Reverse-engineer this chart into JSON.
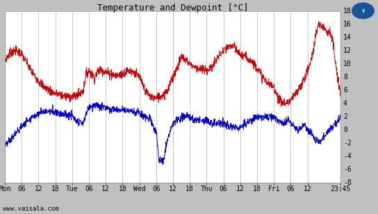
{
  "title": "Temperature and Dewpoint [°C]",
  "bg_color": "#c0c0c0",
  "plot_bg_color": "#ffffff",
  "grid_color": "#b0b0b0",
  "temp_color": "#cc0000",
  "dewp_color": "#0000cc",
  "ylim": [
    -8,
    18
  ],
  "yticks": [
    -8,
    -6,
    -4,
    -2,
    0,
    2,
    4,
    6,
    8,
    10,
    12,
    14,
    16,
    18
  ],
  "xtick_pos": [
    0,
    6,
    12,
    18,
    24,
    30,
    36,
    42,
    48,
    54,
    60,
    66,
    72,
    78,
    84,
    90,
    96,
    102,
    108,
    119.75
  ],
  "xtick_labels": [
    "Mon",
    "06",
    "12",
    "18",
    "Tue",
    "06",
    "12",
    "18",
    "Wed",
    "06",
    "12",
    "18",
    "Thu",
    "06",
    "12",
    "18",
    "Fri",
    "06",
    "12",
    "23:45"
  ],
  "watermark": "www.vaisala.com",
  "title_fontsize": 9,
  "axis_fontsize": 7,
  "line_width": 0.7,
  "xlim_max": 119.75,
  "temp_ctrl": [
    [
      0,
      10.5
    ],
    [
      2,
      11.8
    ],
    [
      4,
      12.0
    ],
    [
      6,
      11.5
    ],
    [
      8,
      10.0
    ],
    [
      10,
      8.5
    ],
    [
      12,
      7.5
    ],
    [
      14,
      6.5
    ],
    [
      16,
      6.0
    ],
    [
      18,
      5.5
    ],
    [
      20,
      5.3
    ],
    [
      22,
      5.1
    ],
    [
      24,
      5.0
    ],
    [
      26,
      5.2
    ],
    [
      28,
      6.0
    ],
    [
      29,
      8.5
    ],
    [
      30,
      9.0
    ],
    [
      31,
      8.5
    ],
    [
      32,
      8.0
    ],
    [
      33,
      8.8
    ],
    [
      34,
      9.2
    ],
    [
      35,
      9.0
    ],
    [
      36,
      8.8
    ],
    [
      38,
      8.5
    ],
    [
      40,
      8.2
    ],
    [
      42,
      8.5
    ],
    [
      44,
      9.0
    ],
    [
      46,
      8.8
    ],
    [
      48,
      8.0
    ],
    [
      50,
      6.0
    ],
    [
      52,
      5.0
    ],
    [
      54,
      4.8
    ],
    [
      56,
      5.2
    ],
    [
      58,
      6.0
    ],
    [
      60,
      8.0
    ],
    [
      62,
      10.0
    ],
    [
      63,
      11.0
    ],
    [
      64,
      10.8
    ],
    [
      65,
      10.5
    ],
    [
      66,
      10.0
    ],
    [
      68,
      9.5
    ],
    [
      70,
      9.2
    ],
    [
      72,
      9.0
    ],
    [
      74,
      9.5
    ],
    [
      76,
      11.0
    ],
    [
      78,
      12.0
    ],
    [
      80,
      12.5
    ],
    [
      81,
      12.8
    ],
    [
      82,
      12.5
    ],
    [
      83,
      11.8
    ],
    [
      84,
      11.5
    ],
    [
      86,
      11.0
    ],
    [
      88,
      10.5
    ],
    [
      90,
      9.5
    ],
    [
      92,
      8.0
    ],
    [
      94,
      7.0
    ],
    [
      96,
      6.5
    ],
    [
      97,
      5.5
    ],
    [
      98,
      4.5
    ],
    [
      99,
      4.2
    ],
    [
      100,
      4.0
    ],
    [
      101,
      4.2
    ],
    [
      102,
      4.5
    ],
    [
      103,
      5.0
    ],
    [
      104,
      5.5
    ],
    [
      106,
      7.0
    ],
    [
      108,
      9.0
    ],
    [
      109,
      10.0
    ],
    [
      110,
      12.0
    ],
    [
      111,
      14.5
    ],
    [
      112,
      16.0
    ],
    [
      113,
      15.8
    ],
    [
      114,
      15.5
    ],
    [
      115,
      15.0
    ],
    [
      116,
      14.8
    ],
    [
      117,
      13.5
    ],
    [
      118,
      10.0
    ],
    [
      119,
      7.0
    ],
    [
      119.75,
      5.5
    ]
  ],
  "dewp_ctrl": [
    [
      0,
      -2.5
    ],
    [
      2,
      -1.5
    ],
    [
      4,
      -0.5
    ],
    [
      6,
      0.5
    ],
    [
      8,
      1.5
    ],
    [
      10,
      2.0
    ],
    [
      12,
      2.5
    ],
    [
      14,
      2.8
    ],
    [
      16,
      2.8
    ],
    [
      18,
      2.8
    ],
    [
      20,
      2.5
    ],
    [
      22,
      2.3
    ],
    [
      24,
      2.2
    ],
    [
      25,
      1.5
    ],
    [
      26,
      1.0
    ],
    [
      27,
      1.2
    ],
    [
      28,
      1.0
    ],
    [
      29,
      2.5
    ],
    [
      30,
      3.5
    ],
    [
      32,
      3.8
    ],
    [
      34,
      3.5
    ],
    [
      36,
      3.5
    ],
    [
      38,
      3.2
    ],
    [
      40,
      3.0
    ],
    [
      42,
      3.2
    ],
    [
      44,
      3.0
    ],
    [
      46,
      2.8
    ],
    [
      48,
      2.5
    ],
    [
      50,
      2.0
    ],
    [
      52,
      1.5
    ],
    [
      53,
      0.5
    ],
    [
      54,
      -0.5
    ],
    [
      55,
      -4.5
    ],
    [
      56,
      -4.8
    ],
    [
      57,
      -4.0
    ],
    [
      58,
      -1.5
    ],
    [
      59,
      0.0
    ],
    [
      60,
      1.0
    ],
    [
      62,
      1.5
    ],
    [
      64,
      2.0
    ],
    [
      66,
      2.0
    ],
    [
      68,
      1.5
    ],
    [
      70,
      1.5
    ],
    [
      72,
      1.5
    ],
    [
      74,
      1.0
    ],
    [
      76,
      1.0
    ],
    [
      78,
      1.0
    ],
    [
      80,
      0.5
    ],
    [
      82,
      0.5
    ],
    [
      84,
      0.5
    ],
    [
      86,
      1.0
    ],
    [
      88,
      1.5
    ],
    [
      90,
      2.0
    ],
    [
      92,
      2.0
    ],
    [
      94,
      2.0
    ],
    [
      96,
      1.8
    ],
    [
      97,
      1.5
    ],
    [
      98,
      1.2
    ],
    [
      99,
      1.0
    ],
    [
      100,
      1.0
    ],
    [
      101,
      1.5
    ],
    [
      102,
      1.0
    ],
    [
      103,
      0.5
    ],
    [
      104,
      0.2
    ],
    [
      105,
      0.0
    ],
    [
      106,
      0.5
    ],
    [
      107,
      1.0
    ],
    [
      108,
      0.0
    ],
    [
      109,
      -0.5
    ],
    [
      110,
      -1.0
    ],
    [
      111,
      -1.5
    ],
    [
      112,
      -1.8
    ],
    [
      113,
      -1.5
    ],
    [
      114,
      -1.0
    ],
    [
      115,
      -0.5
    ],
    [
      116,
      0.0
    ],
    [
      117,
      0.5
    ],
    [
      118,
      1.0
    ],
    [
      119,
      1.5
    ],
    [
      119.75,
      2.0
    ]
  ]
}
